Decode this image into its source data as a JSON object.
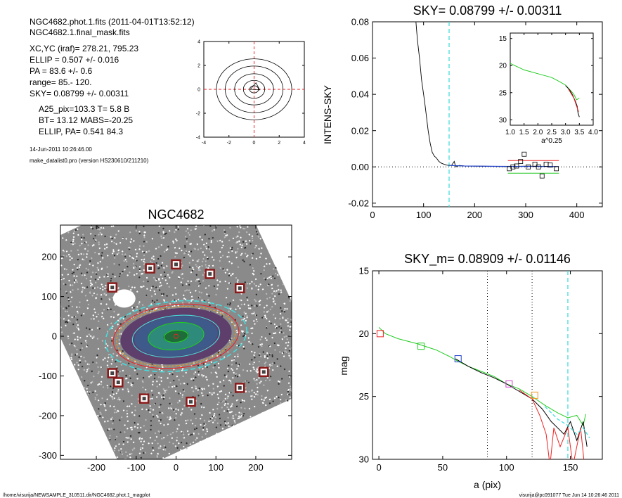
{
  "info": {
    "lines": [
      "NGC4682.phot.1.fits  (2011-04-01T13:52:12)",
      "NGC4682.1.final_mask.fits",
      "XC,YC (iraf)=   278.21, 795.23",
      "ELLIP = 0.507 +/- 0.016",
      "PA    =  83.6 +/-   0.6",
      "range=   85.-  120.",
      "SKY= 0.08799 +/- 0.00311",
      "A25_pix=103.3   T= 5.8  B",
      "BT=  13.12   MABS=-20.25",
      "ELLIP, PA= 0.541   84.3",
      "14-Jun-2011 10:26:46.00",
      "make_datalist0.pro (version HS230610/211210)"
    ]
  },
  "footer": {
    "left": "/home/visurija/NEWSAMPLE_310511.dir/NGC4682.phot.1_magplot",
    "right": "visurija@pc091077  Tue Jun 14 10:26:46 2011"
  },
  "colors": {
    "black": "#000000",
    "cyan": "#44dddd",
    "red": "#ee2222",
    "green": "#22cc22",
    "blue": "#2244cc",
    "magenta": "#cc44cc",
    "orange": "#ee9922",
    "darkred": "#8b1a1a"
  },
  "chart_data": [
    {
      "id": "contour",
      "type": "contour",
      "title": "",
      "xlim": [
        -4,
        4
      ],
      "ylim": [
        -4,
        4
      ],
      "xticks": [
        "-4",
        "-2",
        "0",
        "2",
        "4"
      ],
      "yticks": [
        "-4",
        "-2",
        "0",
        "2",
        "4"
      ],
      "contours": [
        {
          "rx": 3.0,
          "ry": 2.55
        },
        {
          "rx": 2.3,
          "ry": 1.95
        },
        {
          "rx": 1.55,
          "ry": 1.3
        },
        {
          "rx": 0.85,
          "ry": 0.75
        },
        {
          "rx": 0.35,
          "ry": 0.3
        }
      ],
      "triangle": [
        [
          -0.3,
          0.0
        ],
        [
          0.15,
          0.55
        ],
        [
          0.45,
          -0.05
        ]
      ]
    },
    {
      "id": "sky",
      "type": "line",
      "title": "SKY= 0.08799 +/- 0.00311",
      "xlabel": "",
      "ylabel": "INTENS-SKY",
      "xlim": [
        0,
        450
      ],
      "ylim": [
        -0.022,
        0.08
      ],
      "xticks": [
        "0",
        "100",
        "200",
        "300",
        "400"
      ],
      "yticks": [
        "-0.02",
        "0.00",
        "0.02",
        "0.04",
        "0.06",
        "0.08"
      ],
      "vline_cyan": 150,
      "profile": [
        [
          85,
          0.08
        ],
        [
          88,
          0.07
        ],
        [
          92,
          0.06
        ],
        [
          96,
          0.048
        ],
        [
          100,
          0.04
        ],
        [
          103,
          0.034
        ],
        [
          106,
          0.027
        ],
        [
          109,
          0.02
        ],
        [
          113,
          0.013
        ],
        [
          117,
          0.008
        ],
        [
          121,
          0.006
        ],
        [
          125,
          0.005
        ],
        [
          130,
          0.003
        ],
        [
          135,
          0.002
        ],
        [
          140,
          0.0015
        ],
        [
          145,
          0.001
        ],
        [
          150,
          0.0008
        ],
        [
          155,
          0.0009
        ],
        [
          160,
          0.003
        ],
        [
          163,
          0.0
        ],
        [
          170,
          0.0008
        ],
        [
          180,
          0.0005
        ],
        [
          200,
          0.0004
        ],
        [
          230,
          0.0003
        ],
        [
          260,
          0.0002
        ],
        [
          300,
          0.0004
        ],
        [
          340,
          0.0003
        ],
        [
          365,
          0.0002
        ]
      ],
      "blue_line": [
        [
          150,
          0.0008
        ],
        [
          180,
          0.0005
        ],
        [
          250,
          0.0003
        ],
        [
          365,
          0.0002
        ]
      ],
      "red_line": [
        [
          265,
          0.0035
        ],
        [
          365,
          0.0035
        ]
      ],
      "green_line": [
        [
          265,
          -0.0035
        ],
        [
          365,
          -0.0035
        ]
      ],
      "squares": [
        [
          268,
          -0.001
        ],
        [
          275,
          0.0
        ],
        [
          282,
          0.0005
        ],
        [
          290,
          0.003
        ],
        [
          297,
          0.007
        ],
        [
          305,
          0.0
        ],
        [
          318,
          0.0015
        ],
        [
          325,
          0.0
        ],
        [
          332,
          -0.005
        ],
        [
          340,
          0.0015
        ],
        [
          348,
          0.001
        ],
        [
          360,
          -0.001
        ]
      ],
      "inset": {
        "xlabel": "a^0.25",
        "xlim": [
          1.0,
          4.0
        ],
        "ylim": [
          31,
          14
        ],
        "xticks": [
          "1.0",
          "1.5",
          "2.0",
          "2.5",
          "3.0",
          "3.5",
          "4.0"
        ],
        "yticks": [
          "15",
          "20",
          "25",
          "30"
        ],
        "green": [
          [
            1.0,
            19.6
          ],
          [
            1.5,
            20.8
          ],
          [
            2.0,
            21.5
          ],
          [
            2.5,
            22.2
          ],
          [
            2.8,
            23.0
          ],
          [
            3.0,
            23.6
          ],
          [
            3.2,
            24.7
          ],
          [
            3.3,
            25.3
          ],
          [
            3.4,
            26.3
          ],
          [
            3.5,
            26.0
          ]
        ],
        "black": [
          [
            3.0,
            23.7
          ],
          [
            3.15,
            24.5
          ],
          [
            3.25,
            25.4
          ],
          [
            3.35,
            26.5
          ],
          [
            3.42,
            27.5
          ],
          [
            3.45,
            28.7
          ],
          [
            3.5,
            29.5
          ]
        ],
        "red": [
          [
            3.1,
            24.3
          ],
          [
            3.3,
            26.0
          ],
          [
            3.4,
            27.5
          ],
          [
            3.47,
            28.5
          ]
        ]
      }
    },
    {
      "id": "image",
      "type": "scatter",
      "title": "NGC4682",
      "xlim": [
        -290,
        290
      ],
      "ylim": [
        -310,
        280
      ],
      "xticks": [
        "-200",
        "-100",
        "0",
        "100",
        "200"
      ],
      "yticks": [
        "-300",
        "-200",
        "-100",
        "0",
        "100",
        "200"
      ],
      "mask_boxes": [
        [
          -160,
          123
        ],
        [
          -65,
          171
        ],
        [
          0,
          181
        ],
        [
          85,
          157
        ],
        [
          160,
          121
        ],
        [
          -160,
          -93
        ],
        [
          -145,
          -116
        ],
        [
          -80,
          -157
        ],
        [
          37,
          -165
        ],
        [
          160,
          -130
        ],
        [
          220,
          -90
        ]
      ],
      "ellipses": [
        {
          "a": 178,
          "b": 88,
          "color": "cyan"
        },
        {
          "a": 158,
          "b": 80,
          "color": "red"
        },
        {
          "a": 150,
          "b": 74,
          "color": "orange"
        },
        {
          "a": 110,
          "b": 52,
          "color": "cyan"
        },
        {
          "a": 70,
          "b": 34,
          "color": "green"
        },
        {
          "a": 30,
          "b": 15,
          "color": "green"
        }
      ]
    },
    {
      "id": "mag",
      "type": "line",
      "title": "SKY_m=  0.08909 +/- 0.01146",
      "xlabel": "a (pix)",
      "ylabel": "mag",
      "xlim": [
        -5,
        175
      ],
      "ylim": [
        30,
        15
      ],
      "xticks": [
        "0",
        "50",
        "100",
        "150"
      ],
      "yticks": [
        "15",
        "20",
        "25",
        "30"
      ],
      "vlines_dotted": [
        85,
        120
      ],
      "vline_cyan": 148,
      "green": [
        [
          0,
          19.5
        ],
        [
          5,
          20.0
        ],
        [
          15,
          20.4
        ],
        [
          30,
          20.8
        ],
        [
          45,
          21.3
        ],
        [
          55,
          21.8
        ],
        [
          62,
          22.2
        ],
        [
          70,
          22.6
        ],
        [
          80,
          23.0
        ],
        [
          90,
          23.4
        ],
        [
          100,
          24.0
        ],
        [
          110,
          24.4
        ],
        [
          120,
          25.0
        ],
        [
          130,
          25.7
        ],
        [
          140,
          26.3
        ],
        [
          148,
          26.7
        ],
        [
          155,
          26.5
        ],
        [
          160,
          27.3
        ],
        [
          162,
          26.4
        ]
      ],
      "black": [
        [
          60,
          22.0
        ],
        [
          70,
          22.6
        ],
        [
          80,
          23.1
        ],
        [
          90,
          23.5
        ],
        [
          100,
          24.0
        ],
        [
          110,
          24.6
        ],
        [
          120,
          25.2
        ],
        [
          128,
          26.0
        ],
        [
          135,
          27.0
        ],
        [
          140,
          27.5
        ],
        [
          145,
          28.0
        ],
        [
          150,
          27.0
        ],
        [
          155,
          28.5
        ],
        [
          160,
          27.0
        ],
        [
          163,
          29.0
        ]
      ],
      "red": [
        [
          110,
          24.5
        ],
        [
          120,
          25.2
        ],
        [
          126,
          26.5
        ],
        [
          131,
          28.0
        ],
        [
          134,
          30.5
        ],
        [
          137,
          27.5
        ],
        [
          142,
          29.0
        ],
        [
          148,
          27.5
        ],
        [
          152,
          30.5
        ],
        [
          158,
          27.5
        ],
        [
          161,
          30.5
        ]
      ],
      "cyan_dashed": [
        [
          130,
          25.8
        ],
        [
          140,
          26.8
        ],
        [
          148,
          27.3
        ],
        [
          155,
          28.0
        ],
        [
          160,
          27.5
        ],
        [
          165,
          28.3
        ]
      ],
      "squares": [
        {
          "x": 1,
          "y": 20.0,
          "color": "red"
        },
        {
          "x": 33,
          "y": 21.0,
          "color": "green"
        },
        {
          "x": 62,
          "y": 22.0,
          "color": "blue"
        },
        {
          "x": 102,
          "y": 24.0,
          "color": "magenta"
        },
        {
          "x": 122,
          "y": 24.9,
          "color": "orange"
        }
      ]
    }
  ]
}
